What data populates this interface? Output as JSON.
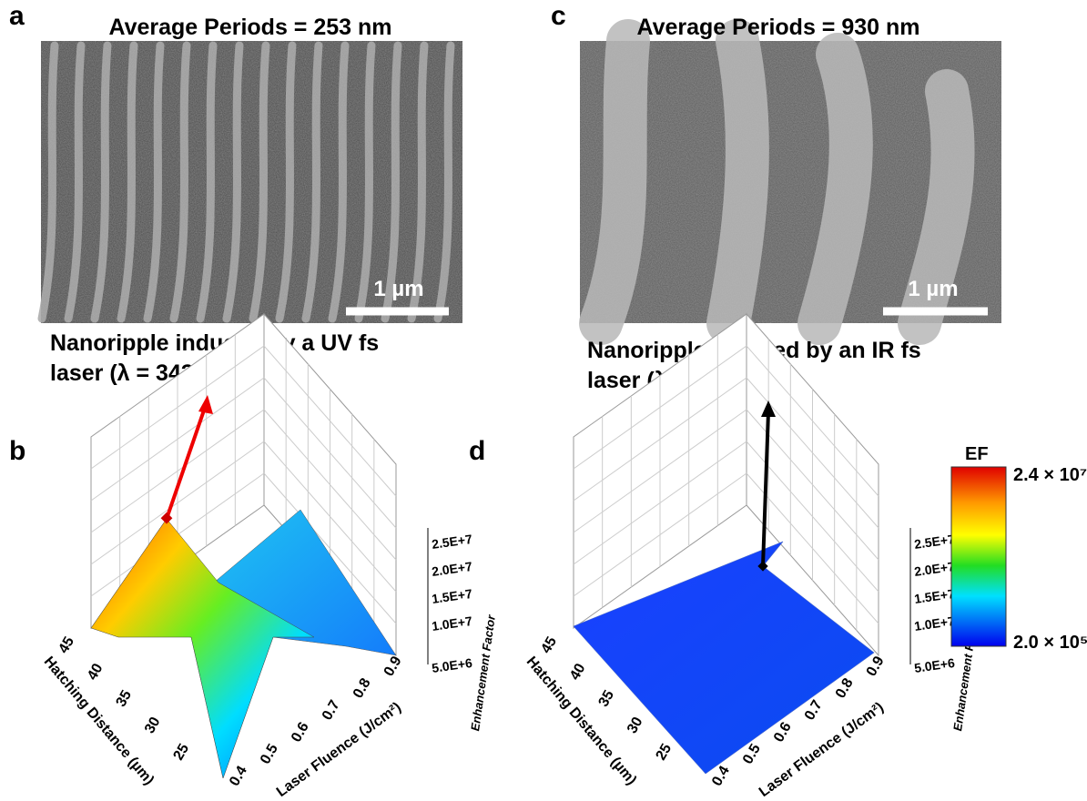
{
  "panels": [
    {
      "label": "a",
      "title": "Average Periods = 253 nm",
      "scale_bar": "1 µm",
      "caption": [
        "Nanoripple induced by a UV fs",
        "laser (λ = 343 nm)"
      ]
    },
    {
      "label": "c",
      "title": "Average Periods = 930 nm",
      "scale_bar": "1 µm",
      "caption": [
        "Nanoripple induced by an IR fs",
        "laser (λ = 1030 nm)"
      ]
    }
  ],
  "plots": [
    {
      "label": "b",
      "z_axis_label": "Enhancement Factor",
      "z_ticks": [
        "2.5E+7",
        "2.0E+7",
        "1.5E+7",
        "1.0E+7",
        "5.0E+6"
      ],
      "x_axis_label": "Hatching Distance (µm)",
      "x_ticks": [
        45,
        40,
        35,
        30,
        25
      ],
      "y_axis_label": "Laser Fluence (J/cm²)",
      "y_ticks": [
        0.4,
        0.5,
        0.6,
        0.7,
        0.8,
        0.9
      ]
    },
    {
      "label": "d",
      "z_axis_label": "Enhancement Factor",
      "z_ticks": [
        "2.5E+7",
        "2.0E+7",
        "1.5E+7",
        "1.0E+7",
        "5.0E+6"
      ],
      "x_axis_label": "Hatching Distance (µm)",
      "x_ticks": [
        45,
        40,
        35,
        30,
        25
      ],
      "y_axis_label": "Laser Fluence (J/cm²)",
      "y_ticks": [
        0.4,
        0.5,
        0.6,
        0.7,
        0.8,
        0.9
      ]
    }
  ],
  "colorbar": {
    "title": "EF",
    "max": "2.4 × 10⁷",
    "min": "2.0 × 10⁵"
  }
}
